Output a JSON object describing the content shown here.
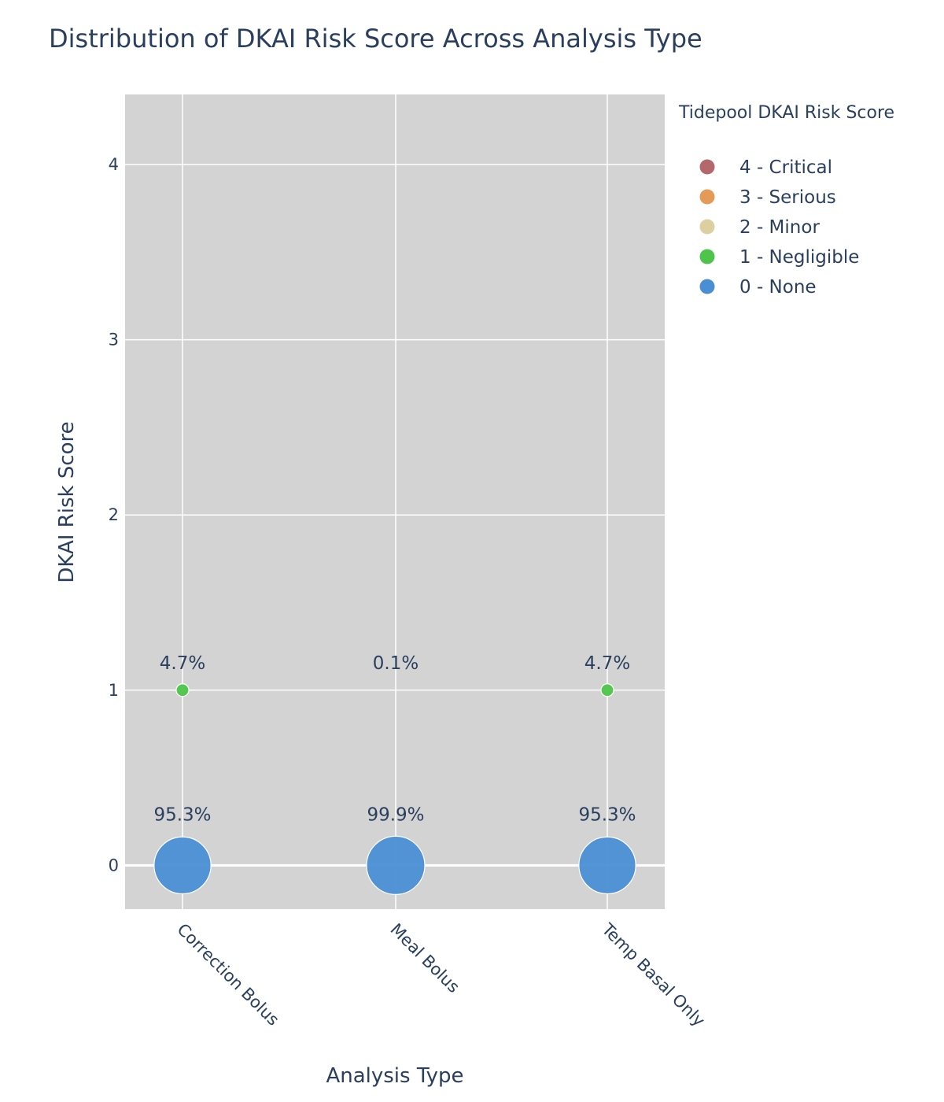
{
  "chart_data": {
    "type": "scatter",
    "title": "Distribution of DKAI Risk Score Across Analysis Type",
    "xlabel": "Analysis Type",
    "ylabel": "DKAI Risk Score",
    "categories": [
      "Correction Bolus",
      "Meal Bolus",
      "Temp Basal Only"
    ],
    "ylim": [
      -0.25,
      4.4
    ],
    "yticks": [
      0,
      1,
      2,
      3,
      4
    ],
    "grid": true,
    "plot_background": "#d3d3d3",
    "legend_title": "Tidepool DKAI Risk Score",
    "legend_position": "right",
    "series": [
      {
        "name": "4 - Critical",
        "color": "#b5686c",
        "score": 4,
        "values": [
          0,
          0,
          0
        ],
        "labels": [
          "",
          "",
          ""
        ]
      },
      {
        "name": "3 - Serious",
        "color": "#e69a58",
        "score": 3,
        "values": [
          0,
          0,
          0
        ],
        "labels": [
          "",
          "",
          ""
        ]
      },
      {
        "name": "2 - Minor",
        "color": "#ddd0a0",
        "score": 2,
        "values": [
          0,
          0,
          0
        ],
        "labels": [
          "",
          "",
          ""
        ]
      },
      {
        "name": "1 - Negligible",
        "color": "#4ec54a",
        "score": 1,
        "values": [
          4.7,
          0.1,
          4.7
        ],
        "labels": [
          "4.7%",
          "0.1%",
          "4.7%"
        ]
      },
      {
        "name": "0 - None",
        "color": "#4a8fd4",
        "score": 0,
        "values": [
          95.3,
          99.9,
          95.3
        ],
        "labels": [
          "95.3%",
          "99.9%",
          "95.3%"
        ]
      }
    ]
  }
}
